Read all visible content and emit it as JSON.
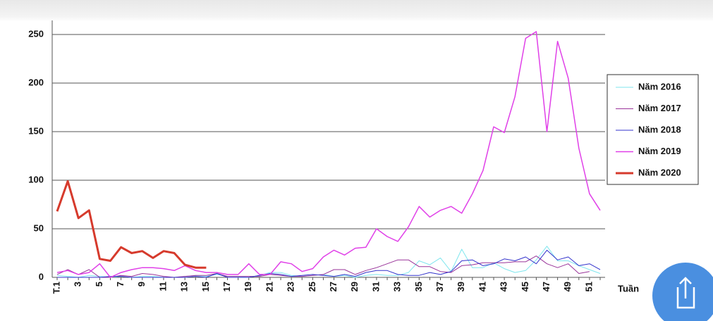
{
  "chart_data": {
    "type": "line",
    "x_label": "Tuần",
    "categories": [
      "T.1",
      null,
      "3",
      null,
      "5",
      null,
      "7",
      null,
      "9",
      null,
      "11",
      null,
      "13",
      null,
      "15",
      null,
      "17",
      null,
      "19",
      null,
      "21",
      null,
      "23",
      null,
      "25",
      null,
      "27",
      null,
      "29",
      null,
      "31",
      null,
      "33",
      null,
      "35",
      null,
      "37",
      null,
      "39",
      null,
      "41",
      null,
      "43",
      null,
      "45",
      null,
      "47",
      null,
      "49",
      null,
      "51",
      null
    ],
    "ylim": [
      0,
      250
    ],
    "yticks": [
      0,
      50,
      100,
      150,
      200,
      250
    ],
    "grid": true,
    "legend": "right",
    "series": [
      {
        "name": "Năm 2016",
        "color": "#7fe6ee",
        "width": 1,
        "values": [
          2,
          1,
          0,
          2,
          1,
          0,
          1,
          0,
          1,
          1,
          0,
          0,
          1,
          2,
          1,
          3,
          1,
          1,
          0,
          2,
          5,
          5,
          2,
          1,
          2,
          3,
          1,
          2,
          0,
          2,
          3,
          2,
          2,
          5,
          17,
          13,
          20,
          6,
          29,
          10,
          10,
          15,
          9,
          5,
          7,
          18,
          32,
          17,
          17,
          12,
          8,
          4
        ]
      },
      {
        "name": "Năm 2017",
        "color": "#993399",
        "width": 1,
        "values": [
          3,
          8,
          3,
          8,
          0,
          0,
          2,
          1,
          4,
          3,
          1,
          0,
          1,
          2,
          2,
          4,
          1,
          1,
          1,
          1,
          3,
          2,
          1,
          1,
          2,
          3,
          8,
          8,
          3,
          7,
          10,
          14,
          18,
          18,
          11,
          11,
          6,
          5,
          12,
          13,
          15,
          15,
          15,
          16,
          16,
          22,
          14,
          10,
          14,
          4,
          6,
          null
        ]
      },
      {
        "name": "Năm 2018",
        "color": "#3333cc",
        "width": 1,
        "values": [
          0,
          0,
          0,
          0,
          0,
          1,
          1,
          0,
          0,
          0,
          0,
          0,
          0,
          1,
          0,
          4,
          0,
          0,
          0,
          2,
          4,
          3,
          1,
          2,
          3,
          2,
          1,
          3,
          1,
          5,
          7,
          7,
          3,
          2,
          2,
          5,
          3,
          6,
          17,
          18,
          12,
          14,
          19,
          17,
          21,
          14,
          28,
          18,
          21,
          12,
          14,
          8
        ]
      },
      {
        "name": "Năm 2019",
        "color": "#e040e8",
        "width": 1.5,
        "values": [
          5,
          7,
          3,
          5,
          14,
          0,
          5,
          8,
          10,
          10,
          9,
          7,
          12,
          7,
          5,
          5,
          3,
          3,
          14,
          3,
          3,
          16,
          14,
          6,
          9,
          21,
          28,
          23,
          30,
          31,
          50,
          42,
          37,
          52,
          73,
          62,
          69,
          73,
          66,
          86,
          110,
          155,
          149,
          186,
          246,
          253,
          150,
          243,
          205,
          133,
          86,
          69
        ]
      },
      {
        "name": "Năm 2020",
        "color": "#d63a2c",
        "width": 3,
        "values": [
          68,
          99,
          61,
          69,
          19,
          17,
          31,
          25,
          27,
          20,
          27,
          25,
          13,
          10,
          10,
          null,
          null,
          null,
          null,
          null,
          null,
          null,
          null,
          null,
          null,
          null,
          null,
          null,
          null,
          null,
          null,
          null,
          null,
          null,
          null,
          null,
          null,
          null,
          null,
          null,
          null,
          null,
          null,
          null,
          null,
          null,
          null,
          null,
          null,
          null,
          null,
          null
        ]
      }
    ]
  }
}
